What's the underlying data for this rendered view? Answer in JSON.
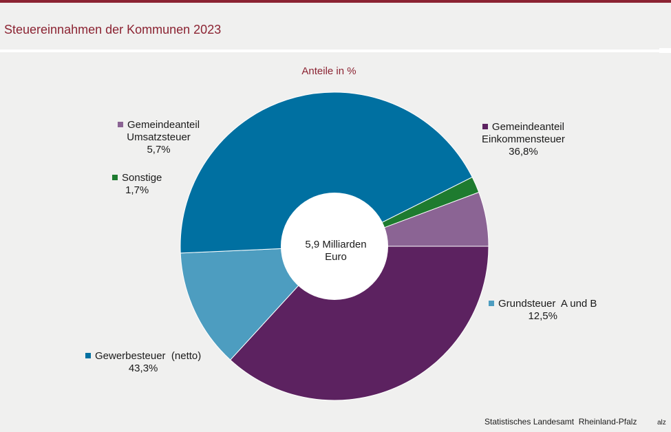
{
  "header": {
    "title": "Steuereinnahmen der Kommunen 2023"
  },
  "colors": {
    "accent": "#8b2332"
  },
  "chart_data": {
    "type": "pie",
    "subtitle": "Anteile in %",
    "center_label": [
      "5,9 Milliarden",
      "Euro"
    ],
    "slices": [
      {
        "name": "Gemeindeanteil Einkommensteuer",
        "label_lines": [
          "Gemeindeanteil",
          "Einkommensteuer"
        ],
        "value": 36.8,
        "value_label": "36,8%",
        "color": "#5c2260"
      },
      {
        "name": "Grundsteuer A und B",
        "label_lines": [
          "Grundsteuer  A und B"
        ],
        "value": 12.5,
        "value_label": "12,5%",
        "color": "#4d9dc0"
      },
      {
        "name": "Gewerbesteuer (netto)",
        "label_lines": [
          "Gewerbesteuer  (netto)"
        ],
        "value": 43.3,
        "value_label": "43,3%",
        "color": "#0070a1"
      },
      {
        "name": "Sonstige",
        "label_lines": [
          "Sonstige"
        ],
        "value": 1.7,
        "value_label": "1,7%",
        "color": "#1e7b2f"
      },
      {
        "name": "Gemeindeanteil Umsatzsteuer",
        "label_lines": [
          "Gemeindeanteil",
          "Umsatzsteuer"
        ],
        "value": 5.7,
        "value_label": "5,7%",
        "color": "#8b6494"
      }
    ]
  },
  "footer": {
    "source": "Statistisches Landesamt  Rheinland-Pfalz",
    "source_edge": "alz"
  }
}
